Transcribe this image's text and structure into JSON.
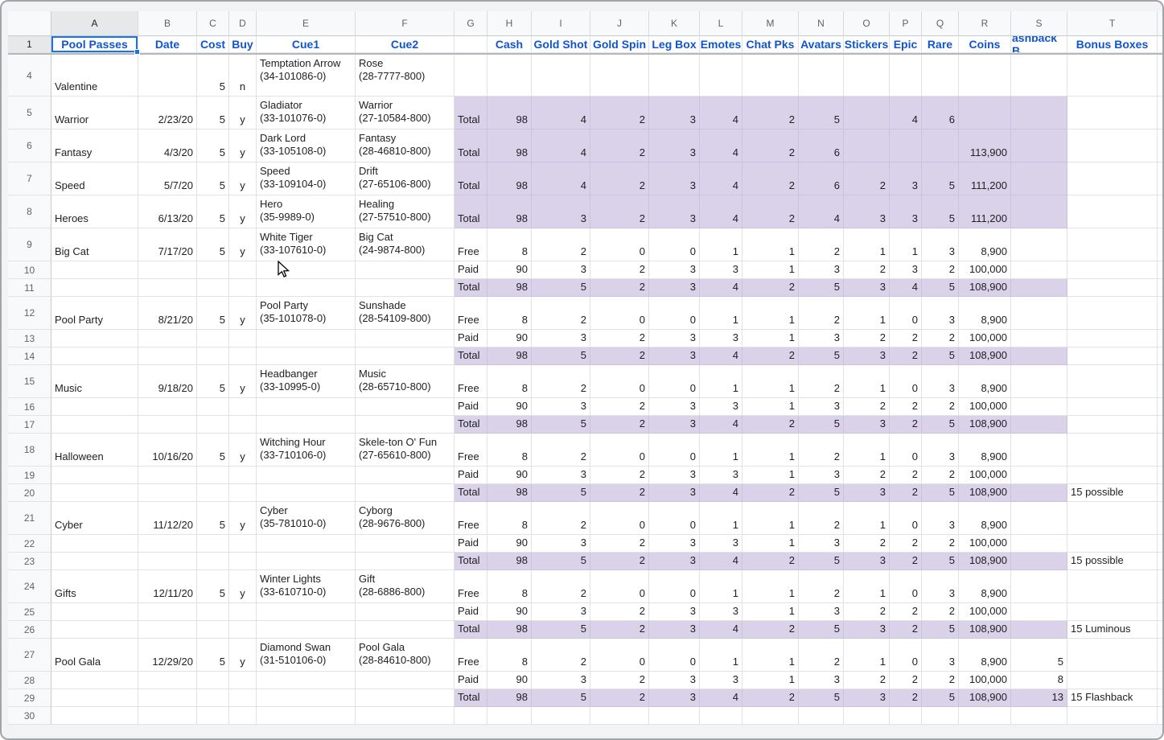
{
  "colors": {
    "header_text": "#1155cc",
    "selection": "#1a73e8",
    "highlight_fill": "#d9d2e9",
    "grid_line": "#e2e2e2",
    "header_bg": "#f8f9fa",
    "text": "#202124",
    "muted_text": "#5f6368"
  },
  "sheet": {
    "columns": [
      "A",
      "B",
      "C",
      "D",
      "E",
      "F",
      "G",
      "H",
      "I",
      "J",
      "K",
      "L",
      "M",
      "N",
      "O",
      "P",
      "Q",
      "R",
      "S",
      "T"
    ]
  },
  "header_row": {
    "row_num": "1",
    "labels": {
      "A": "Pool Passes",
      "B": "Date",
      "C": "Cost",
      "D": "Buy",
      "E": "Cue1",
      "F": "Cue2",
      "G": "",
      "H": "Cash",
      "I": "Gold Shot",
      "J": "Gold Spin",
      "K": "Leg Box",
      "L": "Emotes",
      "M": "Chat Pks",
      "N": "Avatars",
      "O": "Stickers",
      "P": "Epic",
      "Q": "Rare",
      "R": "Coins",
      "S": "ashback B",
      "T": "Bonus Boxes"
    }
  },
  "rows": [
    {
      "n": "4",
      "cells": {
        "A": "Valentine",
        "C": "5",
        "D": "n",
        "E": "Temptation Arrow\n(34-101086-0)",
        "F": "Rose\n(28-7777-800)"
      }
    },
    {
      "n": "5",
      "highlight": true,
      "cells": {
        "A": "Warrior",
        "B": "2/23/20",
        "C": "5",
        "D": "y",
        "E": "Gladiator\n(33-101076-0)",
        "F": "Warrior\n(27-10584-800)",
        "G": "Total",
        "H": "98",
        "I": "4",
        "J": "2",
        "K": "3",
        "L": "4",
        "M": "2",
        "N": "5",
        "P": "4",
        "Q": "6"
      }
    },
    {
      "n": "6",
      "highlight": true,
      "cells": {
        "A": "Fantasy",
        "B": "4/3/20",
        "C": "5",
        "D": "y",
        "E": "Dark Lord\n(33-105108-0)",
        "F": "Fantasy\n(28-46810-800)",
        "G": "Total",
        "H": "98",
        "I": "4",
        "J": "2",
        "K": "3",
        "L": "4",
        "M": "2",
        "N": "6",
        "R": "113,900"
      }
    },
    {
      "n": "7",
      "highlight": true,
      "cells": {
        "A": "Speed",
        "B": "5/7/20",
        "C": "5",
        "D": "y",
        "E": "Speed\n(33-109104-0)",
        "F": "Drift\n(27-65106-800)",
        "G": "Total",
        "H": "98",
        "I": "4",
        "J": "2",
        "K": "3",
        "L": "4",
        "M": "2",
        "N": "6",
        "O": "2",
        "P": "3",
        "Q": "5",
        "R": "111,200"
      }
    },
    {
      "n": "8",
      "highlight": true,
      "cells": {
        "A": "Heroes",
        "B": "6/13/20",
        "C": "5",
        "D": "y",
        "E": "Hero\n(35-9989-0)",
        "F": "Healing\n(27-57510-800)",
        "G": "Total",
        "H": "98",
        "I": "3",
        "J": "2",
        "K": "3",
        "L": "4",
        "M": "2",
        "N": "4",
        "O": "3",
        "P": "3",
        "Q": "5",
        "R": "111,200"
      }
    },
    {
      "n": "9",
      "cells": {
        "A": "Big Cat",
        "B": "7/17/20",
        "C": "5",
        "D": "y",
        "E": "White Tiger\n(33-107610-0)",
        "F": "Big Cat\n(24-9874-800)",
        "G": "Free",
        "H": "8",
        "I": "2",
        "J": "0",
        "K": "0",
        "L": "1",
        "M": "1",
        "N": "2",
        "O": "1",
        "P": "1",
        "Q": "3",
        "R": "8,900"
      }
    },
    {
      "n": "10",
      "cells": {
        "G": "Paid",
        "H": "90",
        "I": "3",
        "J": "2",
        "K": "3",
        "L": "3",
        "M": "1",
        "N": "3",
        "O": "2",
        "P": "3",
        "Q": "2",
        "R": "100,000"
      }
    },
    {
      "n": "11",
      "highlight": true,
      "cells": {
        "G": "Total",
        "H": "98",
        "I": "5",
        "J": "2",
        "K": "3",
        "L": "4",
        "M": "2",
        "N": "5",
        "O": "3",
        "P": "4",
        "Q": "5",
        "R": "108,900"
      }
    },
    {
      "n": "12",
      "cells": {
        "A": "Pool Party",
        "B": "8/21/20",
        "C": "5",
        "D": "y",
        "E": "Pool Party\n(35-101078-0)",
        "F": "Sunshade\n(28-54109-800)",
        "G": "Free",
        "H": "8",
        "I": "2",
        "J": "0",
        "K": "0",
        "L": "1",
        "M": "1",
        "N": "2",
        "O": "1",
        "P": "0",
        "Q": "3",
        "R": "8,900"
      }
    },
    {
      "n": "13",
      "cells": {
        "G": "Paid",
        "H": "90",
        "I": "3",
        "J": "2",
        "K": "3",
        "L": "3",
        "M": "1",
        "N": "3",
        "O": "2",
        "P": "2",
        "Q": "2",
        "R": "100,000"
      }
    },
    {
      "n": "14",
      "highlight": true,
      "cells": {
        "G": "Total",
        "H": "98",
        "I": "5",
        "J": "2",
        "K": "3",
        "L": "4",
        "M": "2",
        "N": "5",
        "O": "3",
        "P": "2",
        "Q": "5",
        "R": "108,900"
      }
    },
    {
      "n": "15",
      "cells": {
        "A": "Music",
        "B": "9/18/20",
        "C": "5",
        "D": "y",
        "E": "Headbanger\n(33-10995-0)",
        "F": "Music\n(28-65710-800)",
        "G": "Free",
        "H": "8",
        "I": "2",
        "J": "0",
        "K": "0",
        "L": "1",
        "M": "1",
        "N": "2",
        "O": "1",
        "P": "0",
        "Q": "3",
        "R": "8,900"
      }
    },
    {
      "n": "16",
      "cells": {
        "G": "Paid",
        "H": "90",
        "I": "3",
        "J": "2",
        "K": "3",
        "L": "3",
        "M": "1",
        "N": "3",
        "O": "2",
        "P": "2",
        "Q": "2",
        "R": "100,000"
      }
    },
    {
      "n": "17",
      "highlight": true,
      "cells": {
        "G": "Total",
        "H": "98",
        "I": "5",
        "J": "2",
        "K": "3",
        "L": "4",
        "M": "2",
        "N": "5",
        "O": "3",
        "P": "2",
        "Q": "5",
        "R": "108,900"
      }
    },
    {
      "n": "18",
      "cells": {
        "A": "Halloween",
        "B": "10/16/20",
        "C": "5",
        "D": "y",
        "E": "Witching Hour\n(33-710106-0)",
        "F": "Skele-ton O' Fun\n(27-65610-800)",
        "G": "Free",
        "H": "8",
        "I": "2",
        "J": "0",
        "K": "0",
        "L": "1",
        "M": "1",
        "N": "2",
        "O": "1",
        "P": "0",
        "Q": "3",
        "R": "8,900"
      }
    },
    {
      "n": "19",
      "cells": {
        "G": "Paid",
        "H": "90",
        "I": "3",
        "J": "2",
        "K": "3",
        "L": "3",
        "M": "1",
        "N": "3",
        "O": "2",
        "P": "2",
        "Q": "2",
        "R": "100,000"
      }
    },
    {
      "n": "20",
      "highlight": true,
      "cells": {
        "G": "Total",
        "H": "98",
        "I": "5",
        "J": "2",
        "K": "3",
        "L": "4",
        "M": "2",
        "N": "5",
        "O": "3",
        "P": "2",
        "Q": "5",
        "R": "108,900",
        "T": "15 possible"
      }
    },
    {
      "n": "21",
      "cells": {
        "A": "Cyber",
        "B": "11/12/20",
        "C": "5",
        "D": "y",
        "E": "Cyber\n(35-781010-0)",
        "F": "Cyborg\n(28-9676-800)",
        "G": "Free",
        "H": "8",
        "I": "2",
        "J": "0",
        "K": "0",
        "L": "1",
        "M": "1",
        "N": "2",
        "O": "1",
        "P": "0",
        "Q": "3",
        "R": "8,900"
      }
    },
    {
      "n": "22",
      "cells": {
        "G": "Paid",
        "H": "90",
        "I": "3",
        "J": "2",
        "K": "3",
        "L": "3",
        "M": "1",
        "N": "3",
        "O": "2",
        "P": "2",
        "Q": "2",
        "R": "100,000"
      }
    },
    {
      "n": "23",
      "highlight": true,
      "cells": {
        "G": "Total",
        "H": "98",
        "I": "5",
        "J": "2",
        "K": "3",
        "L": "4",
        "M": "2",
        "N": "5",
        "O": "3",
        "P": "2",
        "Q": "5",
        "R": "108,900",
        "T": "15 possible"
      }
    },
    {
      "n": "24",
      "cells": {
        "A": "Gifts",
        "B": "12/11/20",
        "C": "5",
        "D": "y",
        "E": "Winter Lights\n(33-610710-0)",
        "F": "Gift\n(28-6886-800)",
        "G": "Free",
        "H": "8",
        "I": "2",
        "J": "0",
        "K": "0",
        "L": "1",
        "M": "1",
        "N": "2",
        "O": "1",
        "P": "0",
        "Q": "3",
        "R": "8,900"
      }
    },
    {
      "n": "25",
      "cells": {
        "G": "Paid",
        "H": "90",
        "I": "3",
        "J": "2",
        "K": "3",
        "L": "3",
        "M": "1",
        "N": "3",
        "O": "2",
        "P": "2",
        "Q": "2",
        "R": "100,000"
      }
    },
    {
      "n": "26",
      "highlight": true,
      "cells": {
        "G": "Total",
        "H": "98",
        "I": "5",
        "J": "2",
        "K": "3",
        "L": "4",
        "M": "2",
        "N": "5",
        "O": "3",
        "P": "2",
        "Q": "5",
        "R": "108,900",
        "T": "15 Luminous"
      }
    },
    {
      "n": "27",
      "cells": {
        "A": "Pool Gala",
        "B": "12/29/20",
        "C": "5",
        "D": "y",
        "E": "Diamond Swan\n(31-510106-0)",
        "F": "Pool Gala\n(28-84610-800)",
        "G": "Free",
        "H": "8",
        "I": "2",
        "J": "0",
        "K": "0",
        "L": "1",
        "M": "1",
        "N": "2",
        "O": "1",
        "P": "0",
        "Q": "3",
        "R": "8,900",
        "S": "5"
      }
    },
    {
      "n": "28",
      "cells": {
        "G": "Paid",
        "H": "90",
        "I": "3",
        "J": "2",
        "K": "3",
        "L": "3",
        "M": "1",
        "N": "3",
        "O": "2",
        "P": "2",
        "Q": "2",
        "R": "100,000",
        "S": "8"
      }
    },
    {
      "n": "29",
      "highlight": true,
      "cells": {
        "G": "Total",
        "H": "98",
        "I": "5",
        "J": "2",
        "K": "3",
        "L": "4",
        "M": "2",
        "N": "5",
        "O": "3",
        "P": "2",
        "Q": "5",
        "R": "108,900",
        "S": "13",
        "T": "15 Flashback"
      }
    },
    {
      "n": "30",
      "cells": {}
    }
  ]
}
